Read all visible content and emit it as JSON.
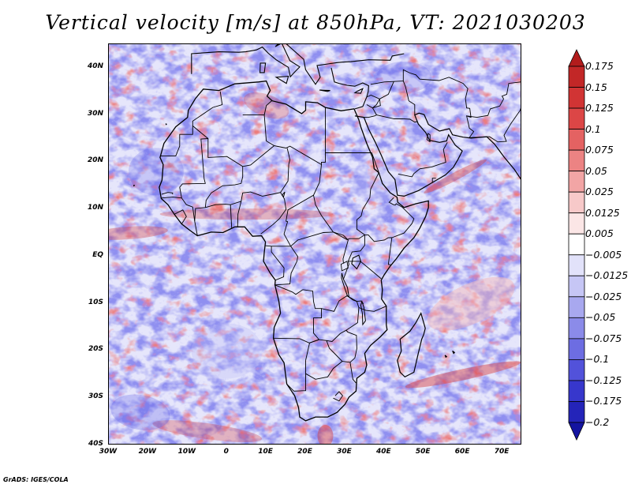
{
  "title": "Vertical velocity [m/s] at 850hPa, VT: 2021030203",
  "credit": "GrADS: IGES/COLA",
  "map": {
    "lat_labels": [
      "40N",
      "30N",
      "20N",
      "10N",
      "EQ",
      "10S",
      "20S",
      "30S",
      "40S"
    ],
    "lon_labels": [
      "30W",
      "20W",
      "10W",
      "0",
      "10E",
      "20E",
      "30E",
      "40E",
      "50E",
      "60E",
      "70E"
    ],
    "lat_range": [
      -40,
      45
    ],
    "lon_range": [
      -30,
      75
    ],
    "field_colors": {
      "background": "#ffffff",
      "positive_strong": "#d63c3c",
      "positive_weak": "#f3b4b4",
      "negative_weak": "#b9b9f4",
      "negative_strong": "#5a5ae6",
      "coast": "#000000"
    }
  },
  "colorbar": {
    "levels": [
      "0.175",
      "0.15",
      "0.125",
      "0.1",
      "0.075",
      "0.05",
      "0.025",
      "0.0125",
      "0.005",
      "−0.005",
      "−0.0125",
      "−0.025",
      "−0.05",
      "−0.075",
      "−0.1",
      "−0.125",
      "−0.175",
      "−0.2"
    ],
    "colors": [
      "#b21c1c",
      "#c22727",
      "#d13434",
      "#dc4646",
      "#e46262",
      "#ec8383",
      "#f2a5a5",
      "#f7c9c9",
      "#fbe6e6",
      "#ffffff",
      "#e2e2fa",
      "#c6c6f5",
      "#a8a8ef",
      "#8b8be9",
      "#6d6de2",
      "#5252da",
      "#3737cc",
      "#2424b9",
      "#1414a0"
    ]
  }
}
